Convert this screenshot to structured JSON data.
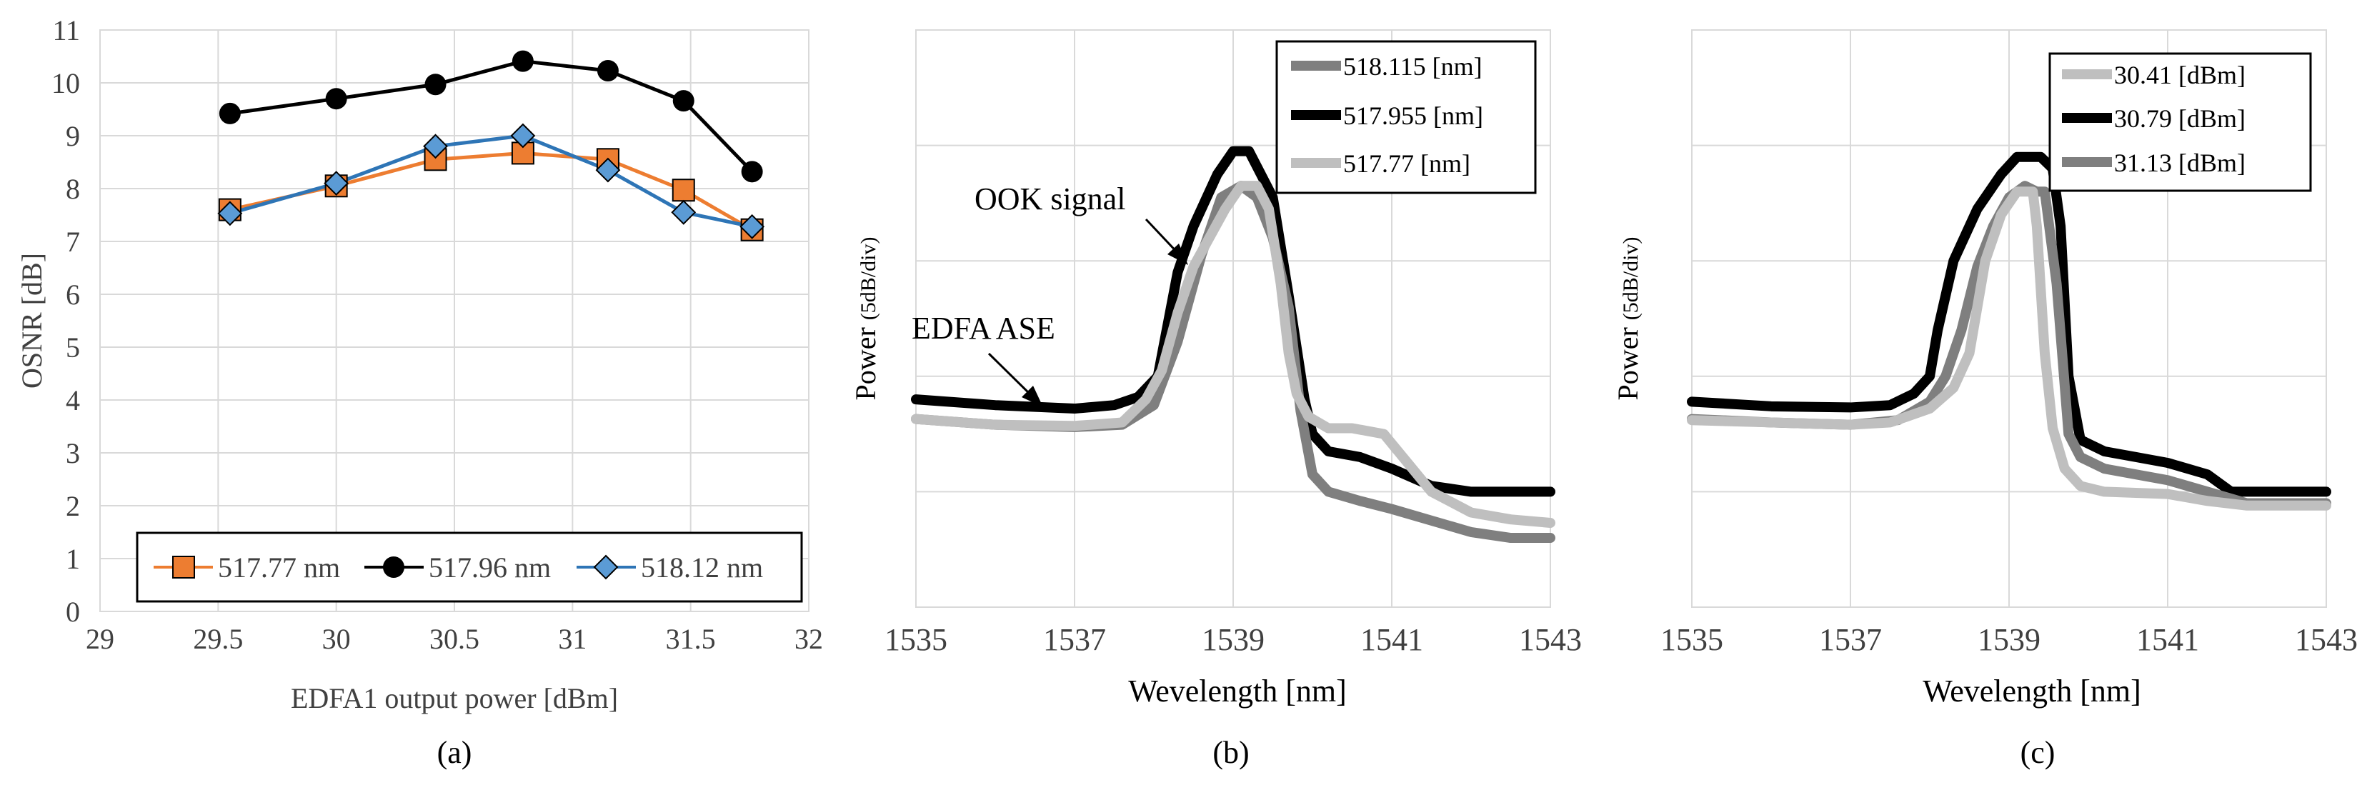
{
  "colors": {
    "orange": "#ed7d31",
    "blue": "#2e75b6",
    "black": "#000000",
    "dark_gray": "#7f7f7f",
    "light_gray": "#bfbfbf",
    "grid": "#d9d9d9"
  },
  "chart_data": [
    {
      "type": "line",
      "caption": "(a)",
      "xlabel": "EDFA1 output power [dBm]",
      "ylabel": "OSNR [dB]",
      "xlim": [
        29,
        32
      ],
      "ylim": [
        0,
        11
      ],
      "xticks": [
        29,
        29.5,
        30,
        30.5,
        31,
        31.5,
        32
      ],
      "yticks": [
        0,
        1,
        2,
        3,
        4,
        5,
        6,
        7,
        8,
        9,
        10,
        11
      ],
      "grid": true,
      "legend_position": "bottom",
      "series": [
        {
          "name": "517.77 nm",
          "color": "#ed7d31",
          "marker": "square",
          "x": [
            29.55,
            30.0,
            30.42,
            30.79,
            31.15,
            31.47,
            31.76
          ],
          "y": [
            7.6,
            8.05,
            8.55,
            8.67,
            8.55,
            7.97,
            7.22
          ]
        },
        {
          "name": "517.96 nm",
          "color": "#000000",
          "marker": "circle",
          "x": [
            29.55,
            30.0,
            30.42,
            30.79,
            31.15,
            31.47,
            31.76
          ],
          "y": [
            9.42,
            9.7,
            9.97,
            10.41,
            10.23,
            9.66,
            8.32
          ]
        },
        {
          "name": "518.12 nm",
          "color": "#2e75b6",
          "marker": "diamond",
          "x": [
            29.55,
            30.0,
            30.42,
            30.79,
            31.15,
            31.47,
            31.76
          ],
          "y": [
            7.53,
            8.1,
            8.8,
            9.0,
            8.35,
            7.55,
            7.28
          ]
        }
      ]
    },
    {
      "type": "line",
      "caption": "(b)",
      "xlabel": "Wevelength [nm]",
      "ylabel_main": "Power ",
      "ylabel_unit": "(5dB/div)",
      "xlim": [
        1535,
        1543
      ],
      "ylim": [
        0,
        5
      ],
      "xticks": [
        1535,
        1537,
        1539,
        1541,
        1543
      ],
      "grid": true,
      "legend_position": "top-right",
      "annotations": [
        {
          "text": "OOK signal",
          "x": 1538.5,
          "y": 4.2
        },
        {
          "text": "EDFA ASE",
          "x": 1536.6,
          "y": 2.35
        }
      ],
      "series": [
        {
          "name": "518.115 [nm]",
          "color": "#7f7f7f",
          "x": [
            1535,
            1536,
            1537,
            1537.6,
            1538.0,
            1538.3,
            1538.6,
            1538.85,
            1539.1,
            1539.3,
            1539.5,
            1539.7,
            1539.85,
            1540.0,
            1540.2,
            1540.6,
            1541,
            1541.5,
            1542,
            1542.5,
            1543
          ],
          "y": [
            1.63,
            1.58,
            1.56,
            1.58,
            1.75,
            2.3,
            3.05,
            3.55,
            3.65,
            3.55,
            3.2,
            2.6,
            1.7,
            1.15,
            1.0,
            0.92,
            0.85,
            0.75,
            0.65,
            0.6,
            0.6
          ]
        },
        {
          "name": "517.955 [nm]",
          "color": "#000000",
          "x": [
            1535,
            1536,
            1537,
            1537.5,
            1537.8,
            1538.05,
            1538.3,
            1538.5,
            1538.8,
            1539.0,
            1539.2,
            1539.5,
            1539.7,
            1539.9,
            1540.0,
            1540.2,
            1540.6,
            1541,
            1541.5,
            1542,
            1542.5,
            1543
          ],
          "y": [
            1.8,
            1.75,
            1.72,
            1.75,
            1.82,
            2.0,
            2.9,
            3.3,
            3.75,
            3.95,
            3.95,
            3.55,
            2.7,
            1.8,
            1.5,
            1.35,
            1.3,
            1.2,
            1.05,
            1.0,
            1.0,
            1.0
          ]
        },
        {
          "name": "517.77 [nm]",
          "color": "#bfbfbf",
          "x": [
            1535,
            1536,
            1537,
            1537.6,
            1537.9,
            1538.1,
            1538.3,
            1538.5,
            1538.7,
            1538.9,
            1539.1,
            1539.3,
            1539.45,
            1539.6,
            1539.7,
            1539.8,
            1539.95,
            1540.2,
            1540.5,
            1540.9,
            1541.2,
            1541.5,
            1542,
            1542.5,
            1543
          ],
          "y": [
            1.63,
            1.58,
            1.57,
            1.6,
            1.8,
            2.05,
            2.55,
            2.95,
            3.2,
            3.45,
            3.65,
            3.65,
            3.45,
            2.8,
            2.2,
            1.85,
            1.65,
            1.55,
            1.55,
            1.5,
            1.25,
            1.0,
            0.82,
            0.76,
            0.73
          ]
        }
      ]
    },
    {
      "type": "line",
      "caption": "(c)",
      "xlabel": "Wevelength [nm]",
      "ylabel_main": "Power ",
      "ylabel_unit": "(5dB/div)",
      "xlim": [
        1535,
        1543
      ],
      "ylim": [
        0,
        5
      ],
      "xticks": [
        1535,
        1537,
        1539,
        1541,
        1543
      ],
      "grid": true,
      "legend_position": "top-right",
      "series": [
        {
          "name": "30.41 [dBm]",
          "color": "#bfbfbf",
          "x": [
            1535,
            1536,
            1537,
            1537.5,
            1538.0,
            1538.3,
            1538.5,
            1538.7,
            1538.9,
            1539.1,
            1539.3,
            1539.35,
            1539.45,
            1539.55,
            1539.7,
            1539.9,
            1540.2,
            1541,
            1541.5,
            1542,
            1543
          ],
          "y": [
            1.62,
            1.6,
            1.58,
            1.6,
            1.72,
            1.9,
            2.2,
            3.0,
            3.4,
            3.6,
            3.6,
            3.3,
            2.2,
            1.55,
            1.2,
            1.05,
            1.0,
            0.98,
            0.92,
            0.88,
            0.88
          ]
        },
        {
          "name": "30.79 [dBm]",
          "color": "#000000",
          "x": [
            1535,
            1536,
            1537,
            1537.5,
            1537.8,
            1538.0,
            1538.1,
            1538.3,
            1538.6,
            1538.9,
            1539.1,
            1539.4,
            1539.55,
            1539.65,
            1539.75,
            1539.9,
            1540.2,
            1540.6,
            1541,
            1541.5,
            1541.8,
            1542,
            1543
          ],
          "y": [
            1.78,
            1.74,
            1.73,
            1.75,
            1.85,
            2.0,
            2.4,
            3.0,
            3.45,
            3.75,
            3.9,
            3.9,
            3.8,
            3.3,
            2.0,
            1.45,
            1.35,
            1.3,
            1.25,
            1.15,
            1.0,
            1.0,
            1.0
          ]
        },
        {
          "name": "31.13 [dBm]",
          "color": "#7f7f7f",
          "x": [
            1535,
            1536,
            1537,
            1537.6,
            1538.0,
            1538.2,
            1538.4,
            1538.6,
            1538.8,
            1539.0,
            1539.2,
            1539.35,
            1539.45,
            1539.6,
            1539.75,
            1539.9,
            1540.2,
            1541,
            1541.5,
            1542,
            1543
          ],
          "y": [
            1.63,
            1.6,
            1.58,
            1.62,
            1.78,
            2.0,
            2.4,
            2.95,
            3.3,
            3.55,
            3.65,
            3.6,
            3.6,
            2.8,
            1.5,
            1.3,
            1.2,
            1.1,
            1.0,
            0.9,
            0.9
          ]
        }
      ]
    }
  ]
}
